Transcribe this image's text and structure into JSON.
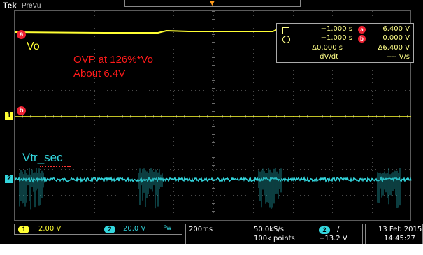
{
  "header": {
    "brand": "Tek",
    "mode": "PreVu"
  },
  "annotations": {
    "vo_label": "Vo",
    "ovp_line1": "OVP at 126%*Vo",
    "ovp_line2": "About 6.4V",
    "vtr_label": "Vtr_sec"
  },
  "channel_markers": {
    "ch1": "1",
    "ch2": "2",
    "cursor_a": "a",
    "cursor_b": "b"
  },
  "cursor_readout": {
    "row_a_time": "−1.000 s",
    "row_a_value": "6.400 V",
    "row_b_time": "−1.000 s",
    "row_b_value": "0.000 V",
    "delta_time": "Δ0.000 s",
    "delta_value": "Δ6.400 V",
    "slope_label": "dV/dt",
    "slope_value": "---- V/s",
    "badge_a": "a",
    "badge_b": "b"
  },
  "status_bar": {
    "ch1_badge": "1",
    "ch1_scale": "2.00 V",
    "ch2_badge": "2",
    "ch2_scale": "20.0 V",
    "bw_icon": "ᴮw",
    "timebase": "200ms",
    "sample_rate": "50.0kS/s",
    "record_length": "100k points",
    "trig_source": "2",
    "trig_slope": "/",
    "trig_level": "−13.2 V",
    "date": "13 Feb  2015",
    "time": "14:45:27"
  },
  "colors": {
    "ch1": "#ffff33",
    "ch2": "#33d6dd",
    "annotation": "#ff1a1a",
    "trigger": "#ff9a1a"
  },
  "icons": {
    "cursor_square": "square-cursor-icon",
    "cursor_circle": "circle-cursor-icon",
    "trigger_position": "trigger-arrow-icon"
  }
}
